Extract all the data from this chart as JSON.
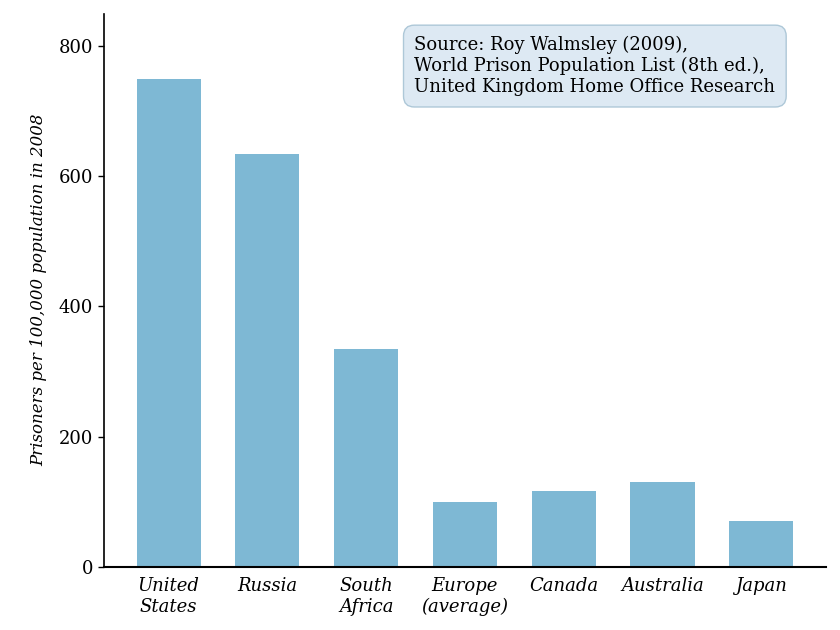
{
  "categories": [
    "United\nStates",
    "Russia",
    "South\nAfrica",
    "Europe\n(average)",
    "Canada",
    "Australia",
    "Japan"
  ],
  "values": [
    750,
    635,
    335,
    100,
    116,
    130,
    70
  ],
  "bar_color": "#7eb8d4",
  "bar_edgecolor": "none",
  "ylabel": "Prisoners per 100,000 population in 2008",
  "ylim": [
    0,
    850
  ],
  "yticks": [
    0,
    200,
    400,
    600,
    800
  ],
  "annotation": "Source: Roy Walmsley (2009),\nWorld Prison Population List (8th ed.),\nUnited Kingdom Home Office Research",
  "annotation_fontsize": 13,
  "annotation_facecolor": "#dde9f3",
  "figsize": [
    8.4,
    6.3
  ],
  "dpi": 100
}
